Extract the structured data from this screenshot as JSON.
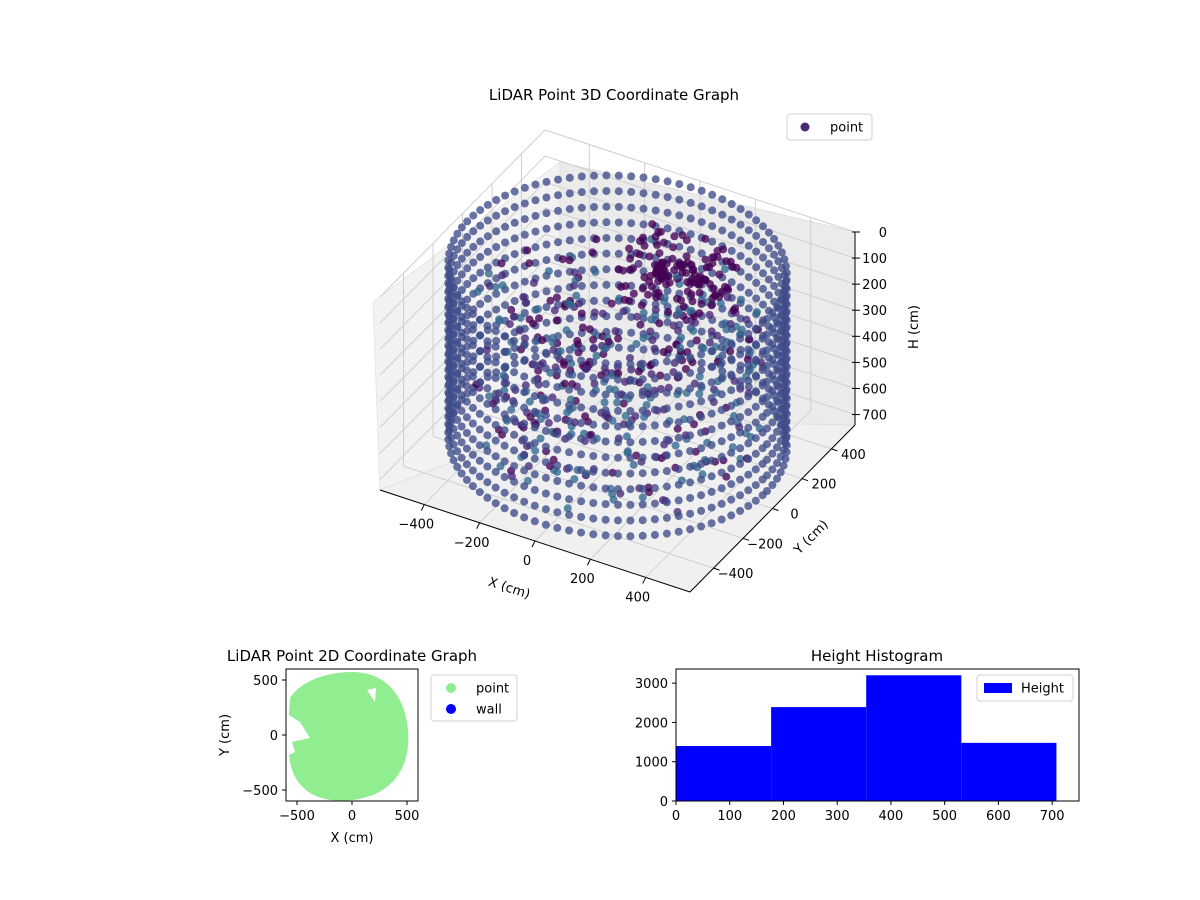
{
  "chart_data": [
    {
      "type": "scatter3d",
      "title": "LiDAR Point 3D Coordinate Graph",
      "xlabel": "X (cm)",
      "ylabel": "Y (cm)",
      "zlabel": "H (cm)",
      "x_ticks": [
        "−400",
        "−200",
        "0",
        "200",
        "400"
      ],
      "y_ticks": [
        "−400",
        "−200",
        "0",
        "200",
        "400"
      ],
      "z_ticks": [
        "0",
        "100",
        "200",
        "300",
        "400",
        "500",
        "600",
        "700"
      ],
      "xlim": [
        -560,
        560
      ],
      "ylim": [
        -560,
        560
      ],
      "zlim": [
        0,
        740
      ],
      "z_inverted": true,
      "grid": true,
      "legend": {
        "position": "top-right",
        "entries": [
          {
            "label": "point",
            "color": "#482878"
          }
        ]
      },
      "wall_radius": 540,
      "wall_height_range": [
        0,
        720
      ],
      "colormap": [
        "#440154",
        "#482878",
        "#3e4a89",
        "#31688e",
        "#26828e"
      ]
    },
    {
      "type": "scatter",
      "title": "LiDAR Point 2D Coordinate Graph",
      "xlabel": "X (cm)",
      "ylabel": "Y (cm)",
      "x_ticks": [
        "−500",
        "0",
        "500"
      ],
      "y_ticks": [
        "500",
        "0",
        "−500"
      ],
      "xlim": [
        -600,
        600
      ],
      "ylim": [
        -600,
        600
      ],
      "grid": false,
      "legend": {
        "position": "outside-right",
        "entries": [
          {
            "label": "point",
            "color": "#90ee90"
          },
          {
            "label": "wall",
            "color": "#0000ff"
          }
        ]
      },
      "point_region_radius": 540
    },
    {
      "type": "bar",
      "title": "Height Histogram",
      "xlabel": "",
      "ylabel": "",
      "bins": [
        {
          "x0": 0,
          "x1": 177,
          "count": 1400
        },
        {
          "x0": 177,
          "x1": 354,
          "count": 2390
        },
        {
          "x0": 354,
          "x1": 531,
          "count": 3200
        },
        {
          "x0": 531,
          "x1": 708,
          "count": 1480
        }
      ],
      "x_ticks": [
        "0",
        "100",
        "200",
        "300",
        "400",
        "500",
        "600",
        "700"
      ],
      "y_ticks": [
        "0",
        "1000",
        "2000",
        "3000"
      ],
      "xlim": [
        0,
        750
      ],
      "ylim": [
        0,
        3360
      ],
      "grid": false,
      "legend": {
        "position": "top-right",
        "entries": [
          {
            "label": "Height",
            "color": "#0000ff"
          }
        ]
      }
    }
  ]
}
